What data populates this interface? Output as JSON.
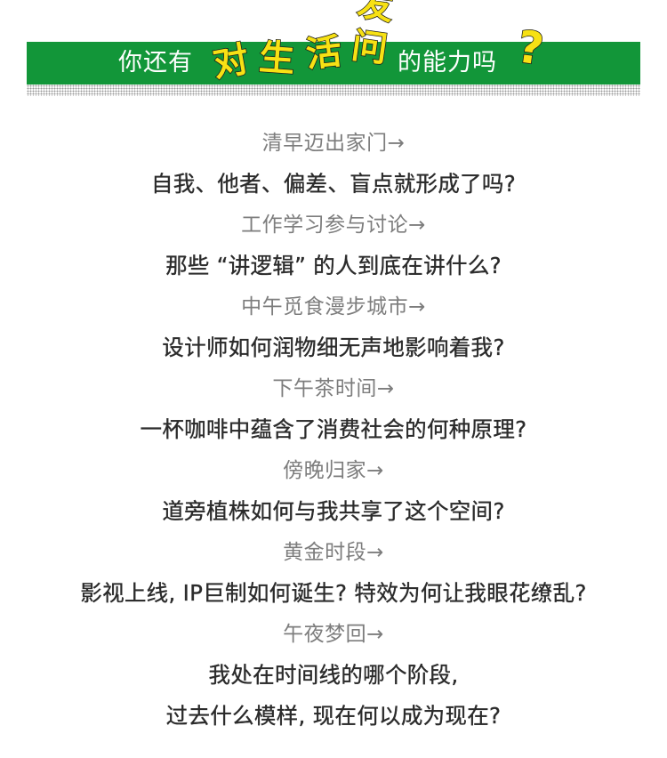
{
  "header": {
    "prefix": "你还有",
    "highlight_chars": [
      "对",
      "生",
      "活",
      "发问"
    ],
    "suffix": "的能力吗",
    "question_mark": "?"
  },
  "colors": {
    "banner_green": "#129639",
    "highlight_yellow": "#f7e114",
    "time_text": "#7d7d7d",
    "question_text": "#2b2b2b"
  },
  "lines": [
    {
      "type": "time",
      "text": "清早迈出家门→"
    },
    {
      "type": "question",
      "text": "自我、他者、偏差、盲点就形成了吗?"
    },
    {
      "type": "time",
      "text": "工作学习参与讨论→"
    },
    {
      "type": "question",
      "text": "那些 “讲逻辑” 的人到底在讲什么?"
    },
    {
      "type": "time",
      "text": "中午觅食漫步城市→"
    },
    {
      "type": "question",
      "text": "设计师如何润物细无声地影响着我?"
    },
    {
      "type": "time",
      "text": "下午茶时间→"
    },
    {
      "type": "question",
      "text": "一杯咖啡中蕴含了消费社会的何种原理?"
    },
    {
      "type": "time",
      "text": "傍晚归家→"
    },
    {
      "type": "question",
      "text": "道旁植株如何与我共享了这个空间?"
    },
    {
      "type": "time",
      "text": "黄金时段→"
    },
    {
      "type": "question",
      "text": "影视上线, IP巨制如何诞生? 特效为何让我眼花缭乱?"
    },
    {
      "type": "time",
      "text": "午夜梦回→"
    },
    {
      "type": "question",
      "text": "我处在时间线的哪个阶段,"
    },
    {
      "type": "question",
      "text": "过去什么模样, 现在何以成为现在?"
    }
  ]
}
